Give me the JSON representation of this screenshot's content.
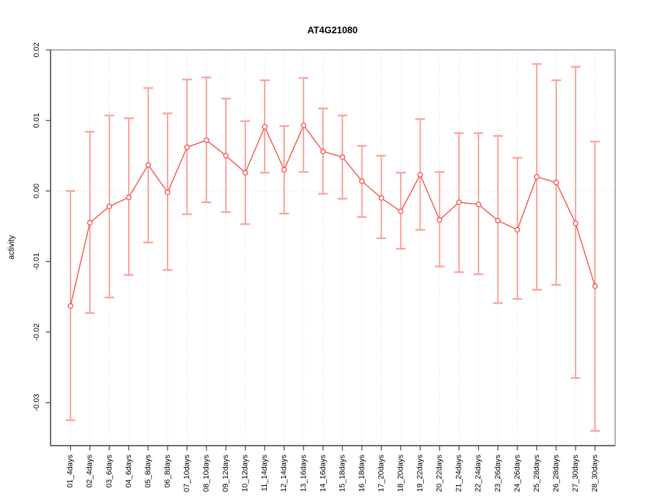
{
  "chart": {
    "title": "AT4G21080",
    "ylabel": "activity",
    "xlabel": ""
  },
  "chart_data": {
    "type": "line",
    "title": "AT4G21080",
    "xlabel": "",
    "ylabel": "activity",
    "ylim": [
      -0.0361,
      0.02
    ],
    "yticks": [
      0.02,
      0.01,
      0.0,
      -0.01,
      -0.02,
      -0.03
    ],
    "ytick_labels": [
      "0.02",
      "0.01",
      "0.00",
      "-0.01",
      "-0.02",
      "-0.03"
    ],
    "grid": "dotted vertical gridline at each category; dotted horizontal line at y=0",
    "legend_position": "none",
    "marker": "open-circle",
    "categories": [
      "01_4days",
      "02_4days",
      "03_6days",
      "04_6days",
      "05_8days",
      "06_8days",
      "07_10days",
      "08_10days",
      "09_12days",
      "10_12days",
      "11_14days",
      "12_14days",
      "13_16days",
      "14_16days",
      "15_18days",
      "16_18days",
      "17_20days",
      "18_20days",
      "19_22days",
      "20_22days",
      "21_24days",
      "22_24days",
      "23_26days",
      "24_26days",
      "25_28days",
      "26_28days",
      "27_30days",
      "28_30days"
    ],
    "series": [
      {
        "name": "activity",
        "values": [
          -0.0163,
          -0.0045,
          -0.0022,
          -0.0009,
          0.0037,
          -0.0002,
          0.0062,
          0.0072,
          0.005,
          0.0026,
          0.0091,
          0.003,
          0.0093,
          0.0056,
          0.0048,
          0.0014,
          -0.001,
          -0.0029,
          0.0023,
          -0.0041,
          -0.0016,
          -0.0019,
          -0.0042,
          -0.0055,
          0.002,
          0.0012,
          -0.0046,
          -0.0135
        ],
        "error_upper": [
          0.0,
          0.0084,
          0.0107,
          0.0103,
          0.0146,
          0.011,
          0.0158,
          0.0161,
          0.0131,
          0.0099,
          0.0157,
          0.0092,
          0.016,
          0.0117,
          0.0107,
          0.0064,
          0.005,
          0.0026,
          0.0102,
          0.0027,
          0.0082,
          0.0082,
          0.0078,
          0.0047,
          0.018,
          0.0157,
          0.0176,
          0.007
        ],
        "error_lower": [
          -0.0325,
          -0.0173,
          -0.0151,
          -0.0119,
          -0.0073,
          -0.0112,
          -0.0033,
          -0.0016,
          -0.003,
          -0.0047,
          0.0026,
          -0.0032,
          0.0027,
          -0.0004,
          -0.0011,
          -0.0037,
          -0.0067,
          -0.0082,
          -0.0055,
          -0.0107,
          -0.0115,
          -0.0118,
          -0.0159,
          -0.0153,
          -0.014,
          -0.0133,
          -0.0265,
          -0.034
        ]
      }
    ],
    "colors": {
      "point_line": "#FA4B43",
      "error_bar": "#FB8B84",
      "error_cap": "#FCA29B",
      "grid": "#E0E0E0",
      "zero_line": "#E0E0E0",
      "box": "#9A9A9A",
      "axis": "#4A4A4A",
      "text": "#000000",
      "background": "#FFFFFF"
    }
  }
}
